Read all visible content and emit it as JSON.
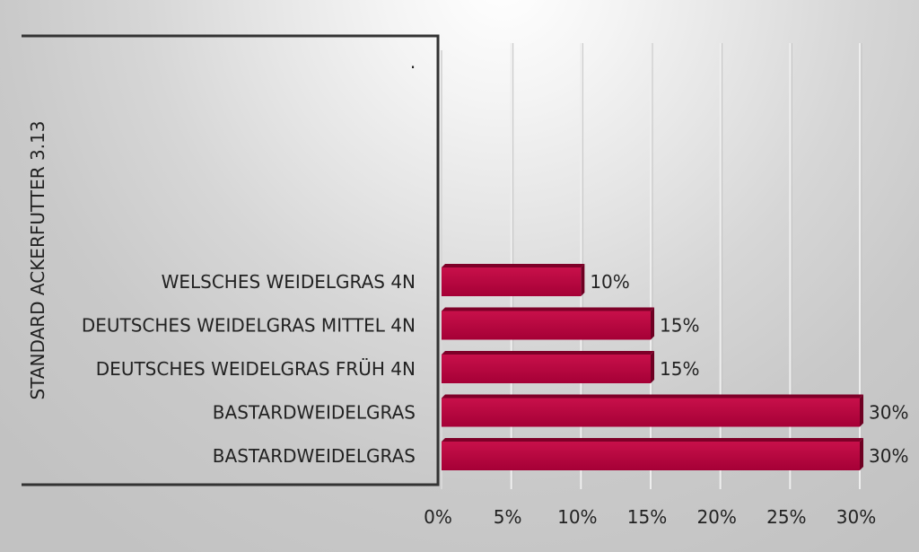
{
  "chart_data": {
    "type": "bar",
    "orientation": "horizontal",
    "group_label": "STANDARD ACKERFUTTER 3.13",
    "title": ".",
    "categories": [
      "WELSCHES WEIDELGRAS 4N",
      "DEUTSCHES WEIDELGRAS MITTEL 4N",
      "DEUTSCHES WEIDELGRAS FRÜH 4N",
      "BASTARDWEIDELGRAS",
      "BASTARDWEIDELGRAS"
    ],
    "values": [
      10,
      15,
      15,
      30,
      30
    ],
    "value_labels": [
      "10%",
      "15%",
      "15%",
      "30%",
      "30%"
    ],
    "xlim": [
      0,
      30
    ],
    "xticks": [
      0,
      5,
      10,
      15,
      20,
      25,
      30
    ],
    "xtick_labels": [
      "0%",
      "5%",
      "10%",
      "15%",
      "20%",
      "25%",
      "30%"
    ],
    "bar_color": "#b0003a",
    "grid": true,
    "legend": "none"
  }
}
